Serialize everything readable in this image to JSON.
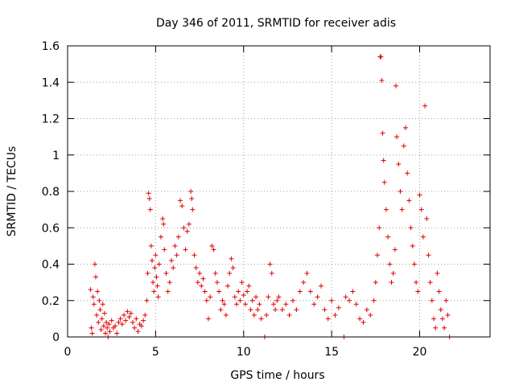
{
  "chart_data": {
    "type": "scatter",
    "title": "Day 346 of 2011, SRMTID for receiver adis",
    "xlabel": "GPS time / hours",
    "ylabel": "SRMTID / TECUs",
    "xlim": [
      0,
      24
    ],
    "ylim": [
      0,
      1.6
    ],
    "xticks": [
      0,
      5,
      10,
      15,
      20
    ],
    "xtick_labels": [
      "0",
      "5",
      "10",
      "15",
      "20"
    ],
    "yticks": [
      0,
      0.2,
      0.4,
      0.6,
      0.8,
      1,
      1.2,
      1.4,
      1.6
    ],
    "ytick_labels": [
      "0",
      "0.2",
      "0.4",
      "0.6",
      "0.8",
      "1",
      "1.2",
      "1.4",
      "1.6"
    ],
    "grid": true,
    "marker": "+",
    "color": "#e00000",
    "series": [
      {
        "name": "SRMTID",
        "points": [
          [
            1.3,
            0.26
          ],
          [
            1.35,
            0.05
          ],
          [
            1.4,
            0.02
          ],
          [
            1.45,
            0.22
          ],
          [
            1.5,
            0.18
          ],
          [
            1.55,
            0.4
          ],
          [
            1.6,
            0.33
          ],
          [
            1.65,
            0.12
          ],
          [
            1.7,
            0.25
          ],
          [
            1.75,
            0.08
          ],
          [
            1.8,
            0.2
          ],
          [
            1.85,
            0.15
          ],
          [
            1.9,
            0.04
          ],
          [
            1.95,
            0.1
          ],
          [
            2.0,
            0.18
          ],
          [
            2.05,
            0.06
          ],
          [
            2.1,
            0.13
          ],
          [
            2.15,
            0.02
          ],
          [
            2.2,
            0.08
          ],
          [
            2.25,
            0.05
          ],
          [
            2.3,
            0.0
          ],
          [
            2.35,
            0.07
          ],
          [
            2.4,
            0.03
          ],
          [
            2.5,
            0.09
          ],
          [
            2.6,
            0.05
          ],
          [
            2.7,
            0.06
          ],
          [
            2.8,
            0.02
          ],
          [
            2.9,
            0.08
          ],
          [
            3.0,
            0.1
          ],
          [
            3.1,
            0.07
          ],
          [
            3.2,
            0.12
          ],
          [
            3.3,
            0.09
          ],
          [
            3.4,
            0.14
          ],
          [
            3.5,
            0.11
          ],
          [
            3.6,
            0.13
          ],
          [
            3.7,
            0.08
          ],
          [
            3.8,
            0.05
          ],
          [
            3.9,
            0.1
          ],
          [
            4.0,
            0.03
          ],
          [
            4.1,
            0.07
          ],
          [
            4.2,
            0.06
          ],
          [
            4.3,
            0.09
          ],
          [
            4.4,
            0.12
          ],
          [
            4.5,
            0.2
          ],
          [
            4.55,
            0.35
          ],
          [
            4.6,
            0.79
          ],
          [
            4.65,
            0.76
          ],
          [
            4.7,
            0.7
          ],
          [
            4.75,
            0.5
          ],
          [
            4.8,
            0.42
          ],
          [
            4.85,
            0.3
          ],
          [
            4.9,
            0.25
          ],
          [
            4.95,
            0.38
          ],
          [
            5.0,
            0.45
          ],
          [
            5.05,
            0.33
          ],
          [
            5.1,
            0.28
          ],
          [
            5.15,
            0.22
          ],
          [
            5.2,
            0.4
          ],
          [
            5.3,
            0.55
          ],
          [
            5.4,
            0.65
          ],
          [
            5.45,
            0.62
          ],
          [
            5.5,
            0.48
          ],
          [
            5.6,
            0.35
          ],
          [
            5.7,
            0.25
          ],
          [
            5.8,
            0.3
          ],
          [
            5.9,
            0.42
          ],
          [
            6.0,
            0.38
          ],
          [
            6.1,
            0.5
          ],
          [
            6.2,
            0.45
          ],
          [
            6.3,
            0.55
          ],
          [
            6.4,
            0.75
          ],
          [
            6.5,
            0.72
          ],
          [
            6.6,
            0.6
          ],
          [
            6.7,
            0.48
          ],
          [
            6.8,
            0.58
          ],
          [
            6.9,
            0.62
          ],
          [
            7.0,
            0.8
          ],
          [
            7.05,
            0.76
          ],
          [
            7.1,
            0.7
          ],
          [
            7.2,
            0.45
          ],
          [
            7.3,
            0.38
          ],
          [
            7.4,
            0.3
          ],
          [
            7.5,
            0.35
          ],
          [
            7.6,
            0.28
          ],
          [
            7.7,
            0.32
          ],
          [
            7.8,
            0.25
          ],
          [
            7.9,
            0.2
          ],
          [
            8.0,
            0.1
          ],
          [
            8.1,
            0.22
          ],
          [
            8.2,
            0.5
          ],
          [
            8.3,
            0.48
          ],
          [
            8.4,
            0.35
          ],
          [
            8.5,
            0.3
          ],
          [
            8.6,
            0.25
          ],
          [
            8.7,
            0.15
          ],
          [
            8.8,
            0.2
          ],
          [
            8.9,
            0.18
          ],
          [
            9.0,
            0.12
          ],
          [
            9.1,
            0.28
          ],
          [
            9.2,
            0.35
          ],
          [
            9.3,
            0.43
          ],
          [
            9.4,
            0.38
          ],
          [
            9.5,
            0.22
          ],
          [
            9.6,
            0.18
          ],
          [
            9.7,
            0.25
          ],
          [
            9.8,
            0.2
          ],
          [
            9.9,
            0.3
          ],
          [
            10.0,
            0.23
          ],
          [
            10.1,
            0.18
          ],
          [
            10.2,
            0.25
          ],
          [
            10.3,
            0.28
          ],
          [
            10.4,
            0.15
          ],
          [
            10.5,
            0.2
          ],
          [
            10.6,
            0.12
          ],
          [
            10.7,
            0.22
          ],
          [
            10.8,
            0.15
          ],
          [
            10.9,
            0.18
          ],
          [
            11.0,
            0.1
          ],
          [
            11.2,
            0.0
          ],
          [
            11.3,
            0.12
          ],
          [
            11.4,
            0.22
          ],
          [
            11.5,
            0.4
          ],
          [
            11.6,
            0.35
          ],
          [
            11.7,
            0.18
          ],
          [
            11.8,
            0.15
          ],
          [
            11.9,
            0.2
          ],
          [
            12.0,
            0.22
          ],
          [
            12.2,
            0.15
          ],
          [
            12.4,
            0.18
          ],
          [
            12.6,
            0.12
          ],
          [
            12.8,
            0.2
          ],
          [
            13.0,
            0.15
          ],
          [
            13.2,
            0.25
          ],
          [
            13.4,
            0.3
          ],
          [
            13.6,
            0.35
          ],
          [
            13.8,
            0.25
          ],
          [
            14.0,
            0.18
          ],
          [
            14.2,
            0.22
          ],
          [
            14.4,
            0.28
          ],
          [
            14.6,
            0.15
          ],
          [
            14.8,
            0.1
          ],
          [
            15.0,
            0.2
          ],
          [
            15.2,
            0.12
          ],
          [
            15.4,
            0.16
          ],
          [
            15.7,
            0.0
          ],
          [
            15.8,
            0.22
          ],
          [
            16.0,
            0.2
          ],
          [
            16.2,
            0.25
          ],
          [
            16.4,
            0.18
          ],
          [
            16.6,
            0.1
          ],
          [
            16.8,
            0.08
          ],
          [
            17.0,
            0.15
          ],
          [
            17.2,
            0.12
          ],
          [
            17.4,
            0.2
          ],
          [
            17.5,
            0.3
          ],
          [
            17.6,
            0.45
          ],
          [
            17.7,
            0.6
          ],
          [
            17.75,
            1.54
          ],
          [
            17.8,
            1.54
          ],
          [
            17.85,
            1.41
          ],
          [
            17.9,
            1.12
          ],
          [
            17.95,
            0.97
          ],
          [
            18.0,
            0.85
          ],
          [
            18.1,
            0.7
          ],
          [
            18.2,
            0.55
          ],
          [
            18.3,
            0.4
          ],
          [
            18.4,
            0.3
          ],
          [
            18.5,
            0.35
          ],
          [
            18.6,
            0.48
          ],
          [
            18.65,
            1.38
          ],
          [
            18.7,
            1.1
          ],
          [
            18.8,
            0.95
          ],
          [
            18.9,
            0.8
          ],
          [
            19.0,
            0.7
          ],
          [
            19.1,
            1.05
          ],
          [
            19.2,
            1.15
          ],
          [
            19.3,
            0.9
          ],
          [
            19.4,
            0.75
          ],
          [
            19.5,
            0.6
          ],
          [
            19.6,
            0.5
          ],
          [
            19.7,
            0.4
          ],
          [
            19.8,
            0.3
          ],
          [
            19.9,
            0.25
          ],
          [
            20.0,
            0.78
          ],
          [
            20.1,
            0.7
          ],
          [
            20.2,
            0.55
          ],
          [
            20.3,
            1.27
          ],
          [
            20.4,
            0.65
          ],
          [
            20.5,
            0.45
          ],
          [
            20.6,
            0.3
          ],
          [
            20.7,
            0.2
          ],
          [
            20.8,
            0.1
          ],
          [
            20.9,
            0.05
          ],
          [
            21.0,
            0.35
          ],
          [
            21.1,
            0.25
          ],
          [
            21.2,
            0.15
          ],
          [
            21.3,
            0.1
          ],
          [
            21.4,
            0.05
          ],
          [
            21.5,
            0.2
          ],
          [
            21.6,
            0.12
          ],
          [
            21.7,
            0.0
          ]
        ]
      }
    ]
  }
}
